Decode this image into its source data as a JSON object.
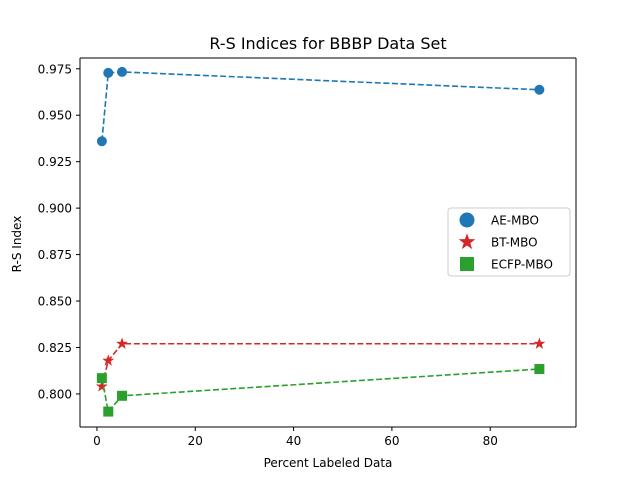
{
  "chart_data": {
    "type": "line",
    "title": "R-S Indices for BBBP Data Set",
    "xlabel": "Percent Labeled Data",
    "ylabel": "R-S Index",
    "xlim": [
      -3.45,
      97.45
    ],
    "ylim": [
      0.7822,
      0.9808
    ],
    "xticks": [
      0,
      20,
      40,
      60,
      80
    ],
    "xtick_labels": [
      "0",
      "20",
      "40",
      "60",
      "80"
    ],
    "yticks": [
      0.8,
      0.825,
      0.85,
      0.875,
      0.9,
      0.925,
      0.95,
      0.975
    ],
    "ytick_labels": [
      "0.800",
      "0.825",
      "0.850",
      "0.875",
      "0.900",
      "0.925",
      "0.950",
      "0.975"
    ],
    "grid": false,
    "legend_position": "center-right",
    "x": [
      1,
      2.3,
      5.1,
      90
    ],
    "series": [
      {
        "name": "AE-MBO",
        "values": [
          0.936,
          0.9728,
          0.9733,
          0.9637
        ],
        "color": "#1f77b4",
        "marker": "circle"
      },
      {
        "name": "BT-MBO",
        "values": [
          0.804,
          0.8179,
          0.827,
          0.827
        ],
        "color": "#d62728",
        "marker": "star"
      },
      {
        "name": "ECFP-MBO",
        "values": [
          0.8085,
          0.7905,
          0.799,
          0.8134
        ],
        "color": "#2ca02c",
        "marker": "square"
      }
    ]
  }
}
